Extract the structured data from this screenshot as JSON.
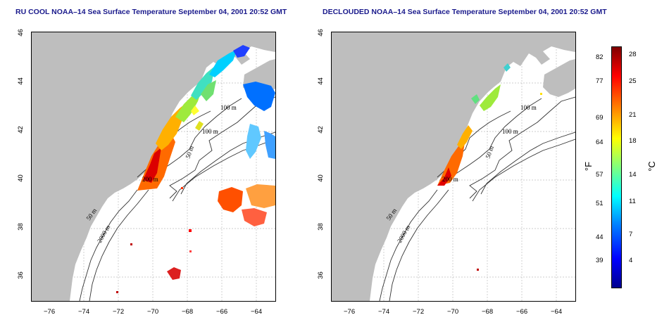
{
  "panels": [
    {
      "title": "RU COOL NOAA–14 Sea Surface Temperature September 04, 2001 20:52 GMT"
    },
    {
      "title": "DECLOUDED NOAA–14 Sea Surface Temperature September 04, 2001 20:52 GMT"
    }
  ],
  "axes": {
    "x_ticks": [
      "−76",
      "−74",
      "−72",
      "−70",
      "−68",
      "−66",
      "−64"
    ],
    "y_ticks": [
      "36",
      "38",
      "40",
      "42",
      "44",
      "46"
    ]
  },
  "contour_labels": [
    "100 m",
    "100 m",
    "50 m",
    "200 m",
    "50 m",
    "2000 m"
  ],
  "colorbar": {
    "unit_f": "°F",
    "unit_c": "°C",
    "f_ticks": [
      "82",
      "77",
      "69",
      "64",
      "57",
      "51",
      "44",
      "39"
    ],
    "c_ticks": [
      "28",
      "25",
      "21",
      "18",
      "14",
      "11",
      "7",
      "4"
    ]
  },
  "colors": {
    "land": "#bebebe",
    "title": "#1a1a8c"
  }
}
